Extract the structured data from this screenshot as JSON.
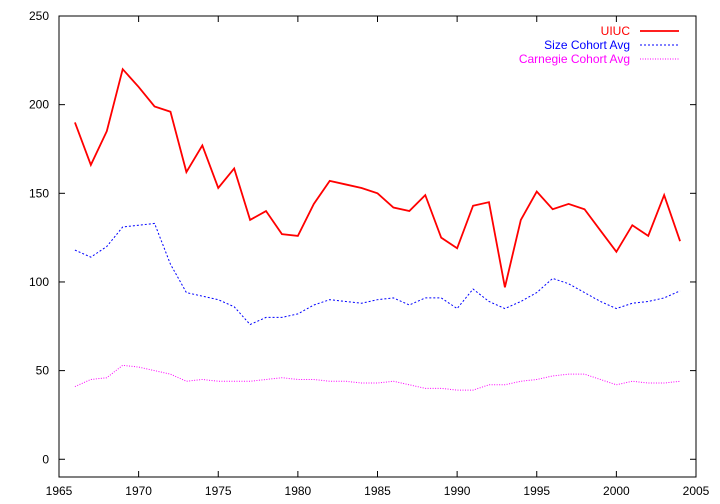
{
  "chart_data": {
    "type": "line",
    "title": "",
    "xlabel": "",
    "ylabel": "",
    "xlim": [
      1965,
      2005
    ],
    "ylim": [
      -10,
      250
    ],
    "xticks": [
      1965,
      1970,
      1975,
      1980,
      1985,
      1990,
      1995,
      2000,
      2005
    ],
    "yticks": [
      0,
      50,
      100,
      150,
      200,
      250
    ],
    "grid": false,
    "legend_position": "top-right",
    "x": [
      1966,
      1967,
      1968,
      1969,
      1970,
      1971,
      1972,
      1973,
      1974,
      1975,
      1976,
      1977,
      1978,
      1979,
      1980,
      1981,
      1982,
      1983,
      1984,
      1985,
      1986,
      1987,
      1988,
      1989,
      1990,
      1991,
      1992,
      1993,
      1994,
      1995,
      1996,
      1997,
      1998,
      1999,
      2000,
      2001,
      2002,
      2003,
      2004
    ],
    "series": [
      {
        "name": "UIUC",
        "color": "#ff0000",
        "style": "solid",
        "values": [
          190,
          166,
          185,
          220,
          210,
          199,
          196,
          162,
          177,
          153,
          164,
          135,
          140,
          127,
          126,
          144,
          157,
          155,
          153,
          150,
          142,
          140,
          149,
          125,
          119,
          143,
          145,
          97,
          135,
          151,
          141,
          144,
          141,
          129,
          117,
          132,
          126,
          149,
          123
        ]
      },
      {
        "name": "Size Cohort Avg",
        "color": "#0000ff",
        "style": "dashed",
        "values": [
          118,
          114,
          120,
          131,
          132,
          133,
          110,
          94,
          92,
          90,
          86,
          76,
          80,
          80,
          82,
          87,
          90,
          89,
          88,
          90,
          91,
          87,
          91,
          91,
          85,
          96,
          89,
          85,
          89,
          94,
          102,
          99,
          94,
          89,
          85,
          88,
          89,
          91,
          95
        ]
      },
      {
        "name": "Carnegie Cohort Avg",
        "color": "#ff00ff",
        "style": "dotted",
        "values": [
          41,
          45,
          46,
          53,
          52,
          50,
          48,
          44,
          45,
          44,
          44,
          44,
          45,
          46,
          45,
          45,
          44,
          44,
          43,
          43,
          44,
          42,
          40,
          40,
          39,
          39,
          42,
          42,
          44,
          45,
          47,
          48,
          48,
          45,
          42,
          44,
          43,
          43,
          44
        ]
      }
    ]
  }
}
